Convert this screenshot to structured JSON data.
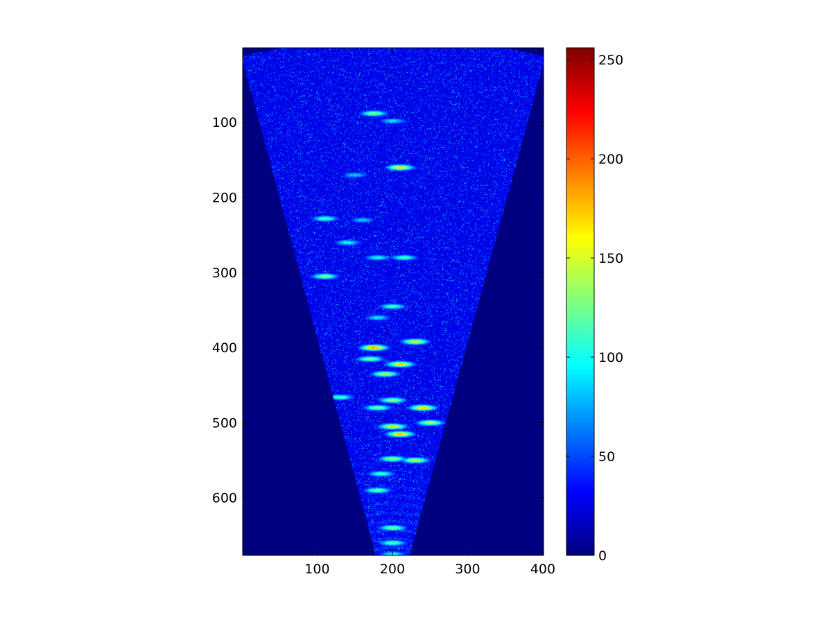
{
  "chart_data": {
    "type": "heatmap",
    "title": "",
    "xlabel": "",
    "ylabel": "",
    "xlim": [
      1,
      401
    ],
    "ylim": [
      677,
      1
    ],
    "x_axis_direction": "normal",
    "y_axis_direction": "reversed",
    "x_ticks": [
      100,
      200,
      300,
      400
    ],
    "y_ticks": [
      100,
      200,
      300,
      400,
      500,
      600
    ],
    "colormap": "jet",
    "background_color": "#00008f",
    "grid": false,
    "colorbar": {
      "location": "right",
      "range": [
        0,
        256
      ],
      "ticks": [
        0,
        50,
        100,
        150,
        200,
        250
      ]
    },
    "sector": {
      "apex": [
        200,
        760
      ],
      "bottom_half_width": 38,
      "top_left": [
        1,
        20
      ],
      "top_right": [
        401,
        20
      ]
    },
    "hotspots": [
      {
        "x": 175,
        "y": 88,
        "v": 170
      },
      {
        "x": 200,
        "y": 98,
        "v": 120
      },
      {
        "x": 210,
        "y": 160,
        "v": 210
      },
      {
        "x": 150,
        "y": 170,
        "v": 110
      },
      {
        "x": 110,
        "y": 228,
        "v": 150
      },
      {
        "x": 160,
        "y": 230,
        "v": 110
      },
      {
        "x": 140,
        "y": 260,
        "v": 130
      },
      {
        "x": 180,
        "y": 280,
        "v": 130
      },
      {
        "x": 110,
        "y": 305,
        "v": 170
      },
      {
        "x": 215,
        "y": 280,
        "v": 150
      },
      {
        "x": 200,
        "y": 345,
        "v": 150
      },
      {
        "x": 180,
        "y": 360,
        "v": 120
      },
      {
        "x": 175,
        "y": 400,
        "v": 240
      },
      {
        "x": 230,
        "y": 392,
        "v": 200
      },
      {
        "x": 210,
        "y": 422,
        "v": 220
      },
      {
        "x": 170,
        "y": 415,
        "v": 170
      },
      {
        "x": 190,
        "y": 435,
        "v": 190
      },
      {
        "x": 130,
        "y": 466,
        "v": 150
      },
      {
        "x": 200,
        "y": 470,
        "v": 180
      },
      {
        "x": 240,
        "y": 480,
        "v": 220
      },
      {
        "x": 250,
        "y": 500,
        "v": 190
      },
      {
        "x": 180,
        "y": 480,
        "v": 170
      },
      {
        "x": 200,
        "y": 505,
        "v": 210
      },
      {
        "x": 210,
        "y": 515,
        "v": 230
      },
      {
        "x": 200,
        "y": 548,
        "v": 180
      },
      {
        "x": 230,
        "y": 550,
        "v": 190
      },
      {
        "x": 185,
        "y": 568,
        "v": 150
      },
      {
        "x": 180,
        "y": 590,
        "v": 160
      },
      {
        "x": 200,
        "y": 640,
        "v": 170
      },
      {
        "x": 200,
        "y": 660,
        "v": 160
      },
      {
        "x": 200,
        "y": 675,
        "v": 130
      }
    ]
  }
}
